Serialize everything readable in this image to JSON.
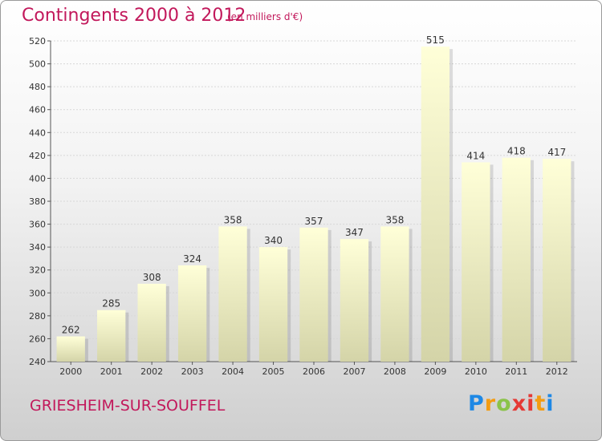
{
  "header": {
    "title": "Contingents 2000 à 2012",
    "subtitle": "(en milliers d'€)"
  },
  "footer": {
    "commune": "GRIESHEIM-SUR-SOUFFEL",
    "logo_text": "Proxiti",
    "logo_colors": [
      "#1e88e5",
      "#f39c12",
      "#8bc34a",
      "#e53935"
    ]
  },
  "chart_data": {
    "type": "bar",
    "title": "Contingents 2000 à 2012",
    "subtitle": "(en milliers d'€)",
    "xlabel": "",
    "ylabel": "",
    "categories": [
      "2000",
      "2001",
      "2002",
      "2003",
      "2004",
      "2005",
      "2006",
      "2007",
      "2008",
      "2009",
      "2010",
      "2011",
      "2012"
    ],
    "values": [
      262,
      285,
      308,
      324,
      358,
      340,
      357,
      347,
      358,
      515,
      414,
      418,
      417
    ],
    "ylim": [
      240,
      520
    ],
    "yticks": [
      240,
      260,
      280,
      300,
      320,
      340,
      360,
      380,
      400,
      420,
      440,
      460,
      480,
      500,
      520
    ],
    "grid": true,
    "legend": "none",
    "bar_color_top": "#ffffd8",
    "bar_color_bottom": "#d4d4a8"
  }
}
